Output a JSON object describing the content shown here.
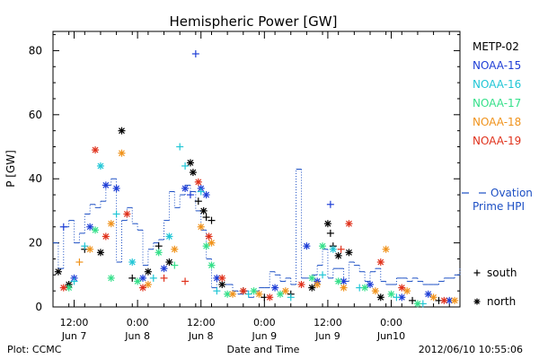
{
  "chart_data": {
    "type": "scatter",
    "title": "Hemispheric Power [GW]",
    "ylabel": "P [GW]",
    "xlabel": "Date and Time",
    "ylim": [
      0,
      86
    ],
    "xlim": [
      "2012-06-07T08:00",
      "2012-06-10T13:00"
    ],
    "y_ticks": [
      0,
      20,
      40,
      60,
      80
    ],
    "x_ticks": [
      {
        "time": "2012-06-07T12:00",
        "line1": "12:00",
        "line2": "Jun 7"
      },
      {
        "time": "2012-06-08T00:00",
        "line1": "0:00",
        "line2": "Jun 8"
      },
      {
        "time": "2012-06-08T12:00",
        "line1": "12:00",
        "line2": "Jun 8"
      },
      {
        "time": "2012-06-09T00:00",
        "line1": "0:00",
        "line2": "Jun 9"
      },
      {
        "time": "2012-06-09T12:00",
        "line1": "12:00",
        "line2": "Jun 9"
      },
      {
        "time": "2012-06-10T00:00",
        "line1": "0:00",
        "line2": "Jun10"
      }
    ],
    "legend": {
      "placement": "right",
      "entries": [
        {
          "name": "METP-02",
          "color": "#000000"
        },
        {
          "name": "NOAA-15",
          "color": "#1f3fd6"
        },
        {
          "name": "NOAA-16",
          "color": "#21c6d6"
        },
        {
          "name": "NOAA-17",
          "color": "#35e08a"
        },
        {
          "name": "NOAA-18",
          "color": "#f0931c"
        },
        {
          "name": "NOAA-19",
          "color": "#e0321c"
        }
      ],
      "ovation": {
        "label1": "Ovation",
        "label2": "Prime HPI",
        "color": "#1c4fc4"
      },
      "markers": [
        {
          "symbol": "+",
          "label": "south"
        },
        {
          "symbol": "*",
          "label": "north"
        }
      ]
    },
    "ovation_series": {
      "name": "Ovation Prime HPI",
      "x": [
        "2012-06-07T08:00",
        "2012-06-07T09:00",
        "2012-06-07T10:00",
        "2012-06-07T11:00",
        "2012-06-07T12:00",
        "2012-06-07T13:00",
        "2012-06-07T14:00",
        "2012-06-07T15:00",
        "2012-06-07T16:00",
        "2012-06-07T17:00",
        "2012-06-07T18:00",
        "2012-06-07T19:00",
        "2012-06-07T20:00",
        "2012-06-07T21:00",
        "2012-06-07T22:00",
        "2012-06-07T23:00",
        "2012-06-08T00:00",
        "2012-06-08T01:00",
        "2012-06-08T02:00",
        "2012-06-08T03:00",
        "2012-06-08T04:00",
        "2012-06-08T05:00",
        "2012-06-08T06:00",
        "2012-06-08T07:00",
        "2012-06-08T08:00",
        "2012-06-08T09:00",
        "2012-06-08T10:00",
        "2012-06-08T11:00",
        "2012-06-08T12:00",
        "2012-06-08T13:00",
        "2012-06-08T14:00",
        "2012-06-08T15:00",
        "2012-06-08T16:00",
        "2012-06-08T17:00",
        "2012-06-08T18:00",
        "2012-06-08T19:00",
        "2012-06-08T20:00",
        "2012-06-08T21:00",
        "2012-06-08T22:00",
        "2012-06-08T23:00",
        "2012-06-09T00:00",
        "2012-06-09T01:00",
        "2012-06-09T02:00",
        "2012-06-09T03:00",
        "2012-06-09T04:00",
        "2012-06-09T05:00",
        "2012-06-09T06:00",
        "2012-06-09T07:00",
        "2012-06-09T08:00",
        "2012-06-09T09:00",
        "2012-06-09T10:00",
        "2012-06-09T11:00",
        "2012-06-09T12:00",
        "2012-06-09T13:00",
        "2012-06-09T14:00",
        "2012-06-09T15:00",
        "2012-06-09T16:00",
        "2012-06-09T17:00",
        "2012-06-09T18:00",
        "2012-06-09T19:00",
        "2012-06-09T20:00",
        "2012-06-09T21:00",
        "2012-06-09T22:00",
        "2012-06-09T23:00",
        "2012-06-10T00:00",
        "2012-06-10T01:00",
        "2012-06-10T02:00",
        "2012-06-10T03:00",
        "2012-06-10T04:00",
        "2012-06-10T05:00",
        "2012-06-10T06:00",
        "2012-06-10T07:00",
        "2012-06-10T08:00",
        "2012-06-10T09:00",
        "2012-06-10T10:00",
        "2012-06-10T11:00",
        "2012-06-10T12:00",
        "2012-06-10T13:00"
      ],
      "values": [
        20,
        12,
        25,
        27,
        20,
        23,
        29,
        32,
        31,
        33,
        38,
        40,
        14,
        27,
        31,
        26,
        24,
        13,
        18,
        20,
        21,
        27,
        36,
        31,
        35,
        38,
        36,
        30,
        24,
        15,
        6,
        9,
        7,
        7,
        5,
        4,
        5,
        3,
        5,
        6,
        6,
        11,
        10,
        8,
        9,
        7,
        43,
        9,
        9,
        10,
        13,
        18,
        9,
        12,
        12,
        8,
        14,
        13,
        11,
        8,
        11,
        12,
        8,
        7,
        7,
        9,
        9,
        8,
        9,
        8,
        7,
        7,
        7,
        8,
        9,
        9,
        10,
        12
      ]
    },
    "series": [
      {
        "name": "METP-02",
        "color": "#000000",
        "points": [
          [
            "2012-06-07T09:00",
            11,
            "n"
          ],
          [
            "2012-06-07T11:00",
            7,
            "n"
          ],
          [
            "2012-06-07T14:00",
            18,
            "s"
          ],
          [
            "2012-06-07T17:00",
            17,
            "n"
          ],
          [
            "2012-06-07T21:00",
            55,
            "n"
          ],
          [
            "2012-06-07T23:00",
            9,
            "s"
          ],
          [
            "2012-06-08T02:00",
            11,
            "n"
          ],
          [
            "2012-06-08T04:00",
            19,
            "s"
          ],
          [
            "2012-06-08T06:00",
            14,
            "n"
          ],
          [
            "2012-06-08T10:00",
            45,
            "n"
          ],
          [
            "2012-06-08T10:30",
            42,
            "n"
          ],
          [
            "2012-06-08T11:30",
            33,
            "s"
          ],
          [
            "2012-06-08T12:30",
            30,
            "n"
          ],
          [
            "2012-06-08T13:00",
            28,
            "s"
          ],
          [
            "2012-06-08T14:00",
            27,
            "s"
          ],
          [
            "2012-06-08T16:00",
            7,
            "n"
          ],
          [
            "2012-06-08T20:00",
            5,
            "s"
          ],
          [
            "2012-06-09T00:00",
            3,
            "s"
          ],
          [
            "2012-06-09T05:00",
            4,
            "s"
          ],
          [
            "2012-06-09T09:00",
            6,
            "n"
          ],
          [
            "2012-06-09T12:00",
            26,
            "n"
          ],
          [
            "2012-06-09T12:30",
            23,
            "s"
          ],
          [
            "2012-06-09T13:00",
            19,
            "s"
          ],
          [
            "2012-06-09T14:00",
            16,
            "n"
          ],
          [
            "2012-06-09T16:00",
            17,
            "n"
          ],
          [
            "2012-06-09T22:00",
            3,
            "n"
          ],
          [
            "2012-06-10T04:00",
            2,
            "s"
          ],
          [
            "2012-06-10T09:00",
            2,
            "s"
          ]
        ]
      },
      {
        "name": "NOAA-15",
        "color": "#1f3fd6",
        "points": [
          [
            "2012-06-07T10:00",
            25,
            "s"
          ],
          [
            "2012-06-07T12:00",
            9,
            "n"
          ],
          [
            "2012-06-07T15:00",
            25,
            "n"
          ],
          [
            "2012-06-07T18:00",
            38,
            "n"
          ],
          [
            "2012-06-07T20:00",
            37,
            "n"
          ],
          [
            "2012-06-08T01:00",
            9,
            "n"
          ],
          [
            "2012-06-08T05:00",
            12,
            "n"
          ],
          [
            "2012-06-08T09:00",
            37,
            "n"
          ],
          [
            "2012-06-08T10:00",
            35,
            "s"
          ],
          [
            "2012-06-08T11:00",
            79,
            "s"
          ],
          [
            "2012-06-08T12:00",
            37,
            "n"
          ],
          [
            "2012-06-08T13:00",
            35,
            "n"
          ],
          [
            "2012-06-08T15:00",
            9,
            "n"
          ],
          [
            "2012-06-09T02:00",
            6,
            "n"
          ],
          [
            "2012-06-09T08:00",
            19,
            "n"
          ],
          [
            "2012-06-09T10:00",
            8,
            "n"
          ],
          [
            "2012-06-09T12:30",
            32,
            "s"
          ],
          [
            "2012-06-09T15:00",
            8,
            "n"
          ],
          [
            "2012-06-09T20:00",
            7,
            "n"
          ],
          [
            "2012-06-10T02:00",
            3,
            "n"
          ],
          [
            "2012-06-10T07:00",
            4,
            "n"
          ],
          [
            "2012-06-10T11:00",
            2,
            "n"
          ]
        ]
      },
      {
        "name": "NOAA-16",
        "color": "#21c6d6",
        "points": [
          [
            "2012-06-07T12:00",
            8,
            "s"
          ],
          [
            "2012-06-07T14:00",
            19,
            "s"
          ],
          [
            "2012-06-07T17:00",
            44,
            "n"
          ],
          [
            "2012-06-07T20:00",
            29,
            "s"
          ],
          [
            "2012-06-07T23:00",
            14,
            "n"
          ],
          [
            "2012-06-08T03:00",
            9,
            "s"
          ],
          [
            "2012-06-08T06:00",
            22,
            "n"
          ],
          [
            "2012-06-08T08:00",
            50,
            "s"
          ],
          [
            "2012-06-08T09:00",
            44,
            "s"
          ],
          [
            "2012-06-08T12:00",
            36,
            "s"
          ],
          [
            "2012-06-08T15:00",
            5,
            "s"
          ],
          [
            "2012-06-08T21:00",
            4,
            "s"
          ],
          [
            "2012-06-09T05:00",
            3,
            "s"
          ],
          [
            "2012-06-09T11:00",
            10,
            "s"
          ],
          [
            "2012-06-09T13:00",
            18,
            "n"
          ],
          [
            "2012-06-09T18:00",
            6,
            "s"
          ],
          [
            "2012-06-10T01:00",
            3,
            "s"
          ],
          [
            "2012-06-10T06:00",
            1,
            "s"
          ]
        ]
      },
      {
        "name": "NOAA-17",
        "color": "#35e08a",
        "points": [
          [
            "2012-06-07T11:00",
            6,
            "n"
          ],
          [
            "2012-06-07T16:00",
            24,
            "n"
          ],
          [
            "2012-06-07T19:00",
            9,
            "n"
          ],
          [
            "2012-06-08T00:00",
            8,
            "n"
          ],
          [
            "2012-06-08T04:00",
            17,
            "n"
          ],
          [
            "2012-06-08T07:00",
            13,
            "s"
          ],
          [
            "2012-06-08T13:00",
            19,
            "n"
          ],
          [
            "2012-06-08T14:00",
            13,
            "n"
          ],
          [
            "2012-06-08T17:00",
            4,
            "n"
          ],
          [
            "2012-06-08T22:00",
            5,
            "n"
          ],
          [
            "2012-06-09T03:00",
            4,
            "n"
          ],
          [
            "2012-06-09T09:00",
            9,
            "n"
          ],
          [
            "2012-06-09T11:00",
            19,
            "n"
          ],
          [
            "2012-06-09T14:00",
            8,
            "n"
          ],
          [
            "2012-06-09T19:00",
            6,
            "n"
          ],
          [
            "2012-06-10T00:00",
            4,
            "n"
          ],
          [
            "2012-06-10T05:00",
            1,
            "n"
          ]
        ]
      },
      {
        "name": "NOAA-18",
        "color": "#f0931c",
        "points": [
          [
            "2012-06-07T13:00",
            14,
            "s"
          ],
          [
            "2012-06-07T15:00",
            18,
            "n"
          ],
          [
            "2012-06-07T19:00",
            26,
            "n"
          ],
          [
            "2012-06-07T21:00",
            48,
            "n"
          ],
          [
            "2012-06-08T02:00",
            7,
            "n"
          ],
          [
            "2012-06-08T07:00",
            18,
            "n"
          ],
          [
            "2012-06-08T12:00",
            25,
            "n"
          ],
          [
            "2012-06-08T14:00",
            20,
            "n"
          ],
          [
            "2012-06-08T18:00",
            4,
            "n"
          ],
          [
            "2012-06-08T23:00",
            4,
            "n"
          ],
          [
            "2012-06-09T04:00",
            5,
            "n"
          ],
          [
            "2012-06-09T10:00",
            7,
            "n"
          ],
          [
            "2012-06-09T15:00",
            6,
            "n"
          ],
          [
            "2012-06-09T21:00",
            5,
            "n"
          ],
          [
            "2012-06-09T23:00",
            18,
            "n"
          ],
          [
            "2012-06-10T03:00",
            5,
            "n"
          ],
          [
            "2012-06-10T08:00",
            3,
            "n"
          ],
          [
            "2012-06-10T12:00",
            2,
            "n"
          ]
        ]
      },
      {
        "name": "NOAA-19",
        "color": "#e0321c",
        "points": [
          [
            "2012-06-07T10:00",
            6,
            "n"
          ],
          [
            "2012-06-07T16:00",
            49,
            "n"
          ],
          [
            "2012-06-07T18:00",
            22,
            "n"
          ],
          [
            "2012-06-07T22:00",
            29,
            "n"
          ],
          [
            "2012-06-08T01:00",
            6,
            "n"
          ],
          [
            "2012-06-08T05:00",
            9,
            "s"
          ],
          [
            "2012-06-08T09:00",
            8,
            "s"
          ],
          [
            "2012-06-08T11:30",
            39,
            "n"
          ],
          [
            "2012-06-08T13:30",
            22,
            "n"
          ],
          [
            "2012-06-08T16:00",
            9,
            "n"
          ],
          [
            "2012-06-08T20:00",
            5,
            "n"
          ],
          [
            "2012-06-09T01:00",
            3,
            "n"
          ],
          [
            "2012-06-09T07:00",
            7,
            "n"
          ],
          [
            "2012-06-09T14:30",
            18,
            "s"
          ],
          [
            "2012-06-09T16:00",
            26,
            "n"
          ],
          [
            "2012-06-09T22:00",
            14,
            "n"
          ],
          [
            "2012-06-10T02:00",
            6,
            "n"
          ],
          [
            "2012-06-10T10:00",
            2,
            "n"
          ]
        ]
      }
    ]
  },
  "footer": {
    "left": "Plot: CCMC",
    "right": "2012/06/10 10:55:06"
  }
}
